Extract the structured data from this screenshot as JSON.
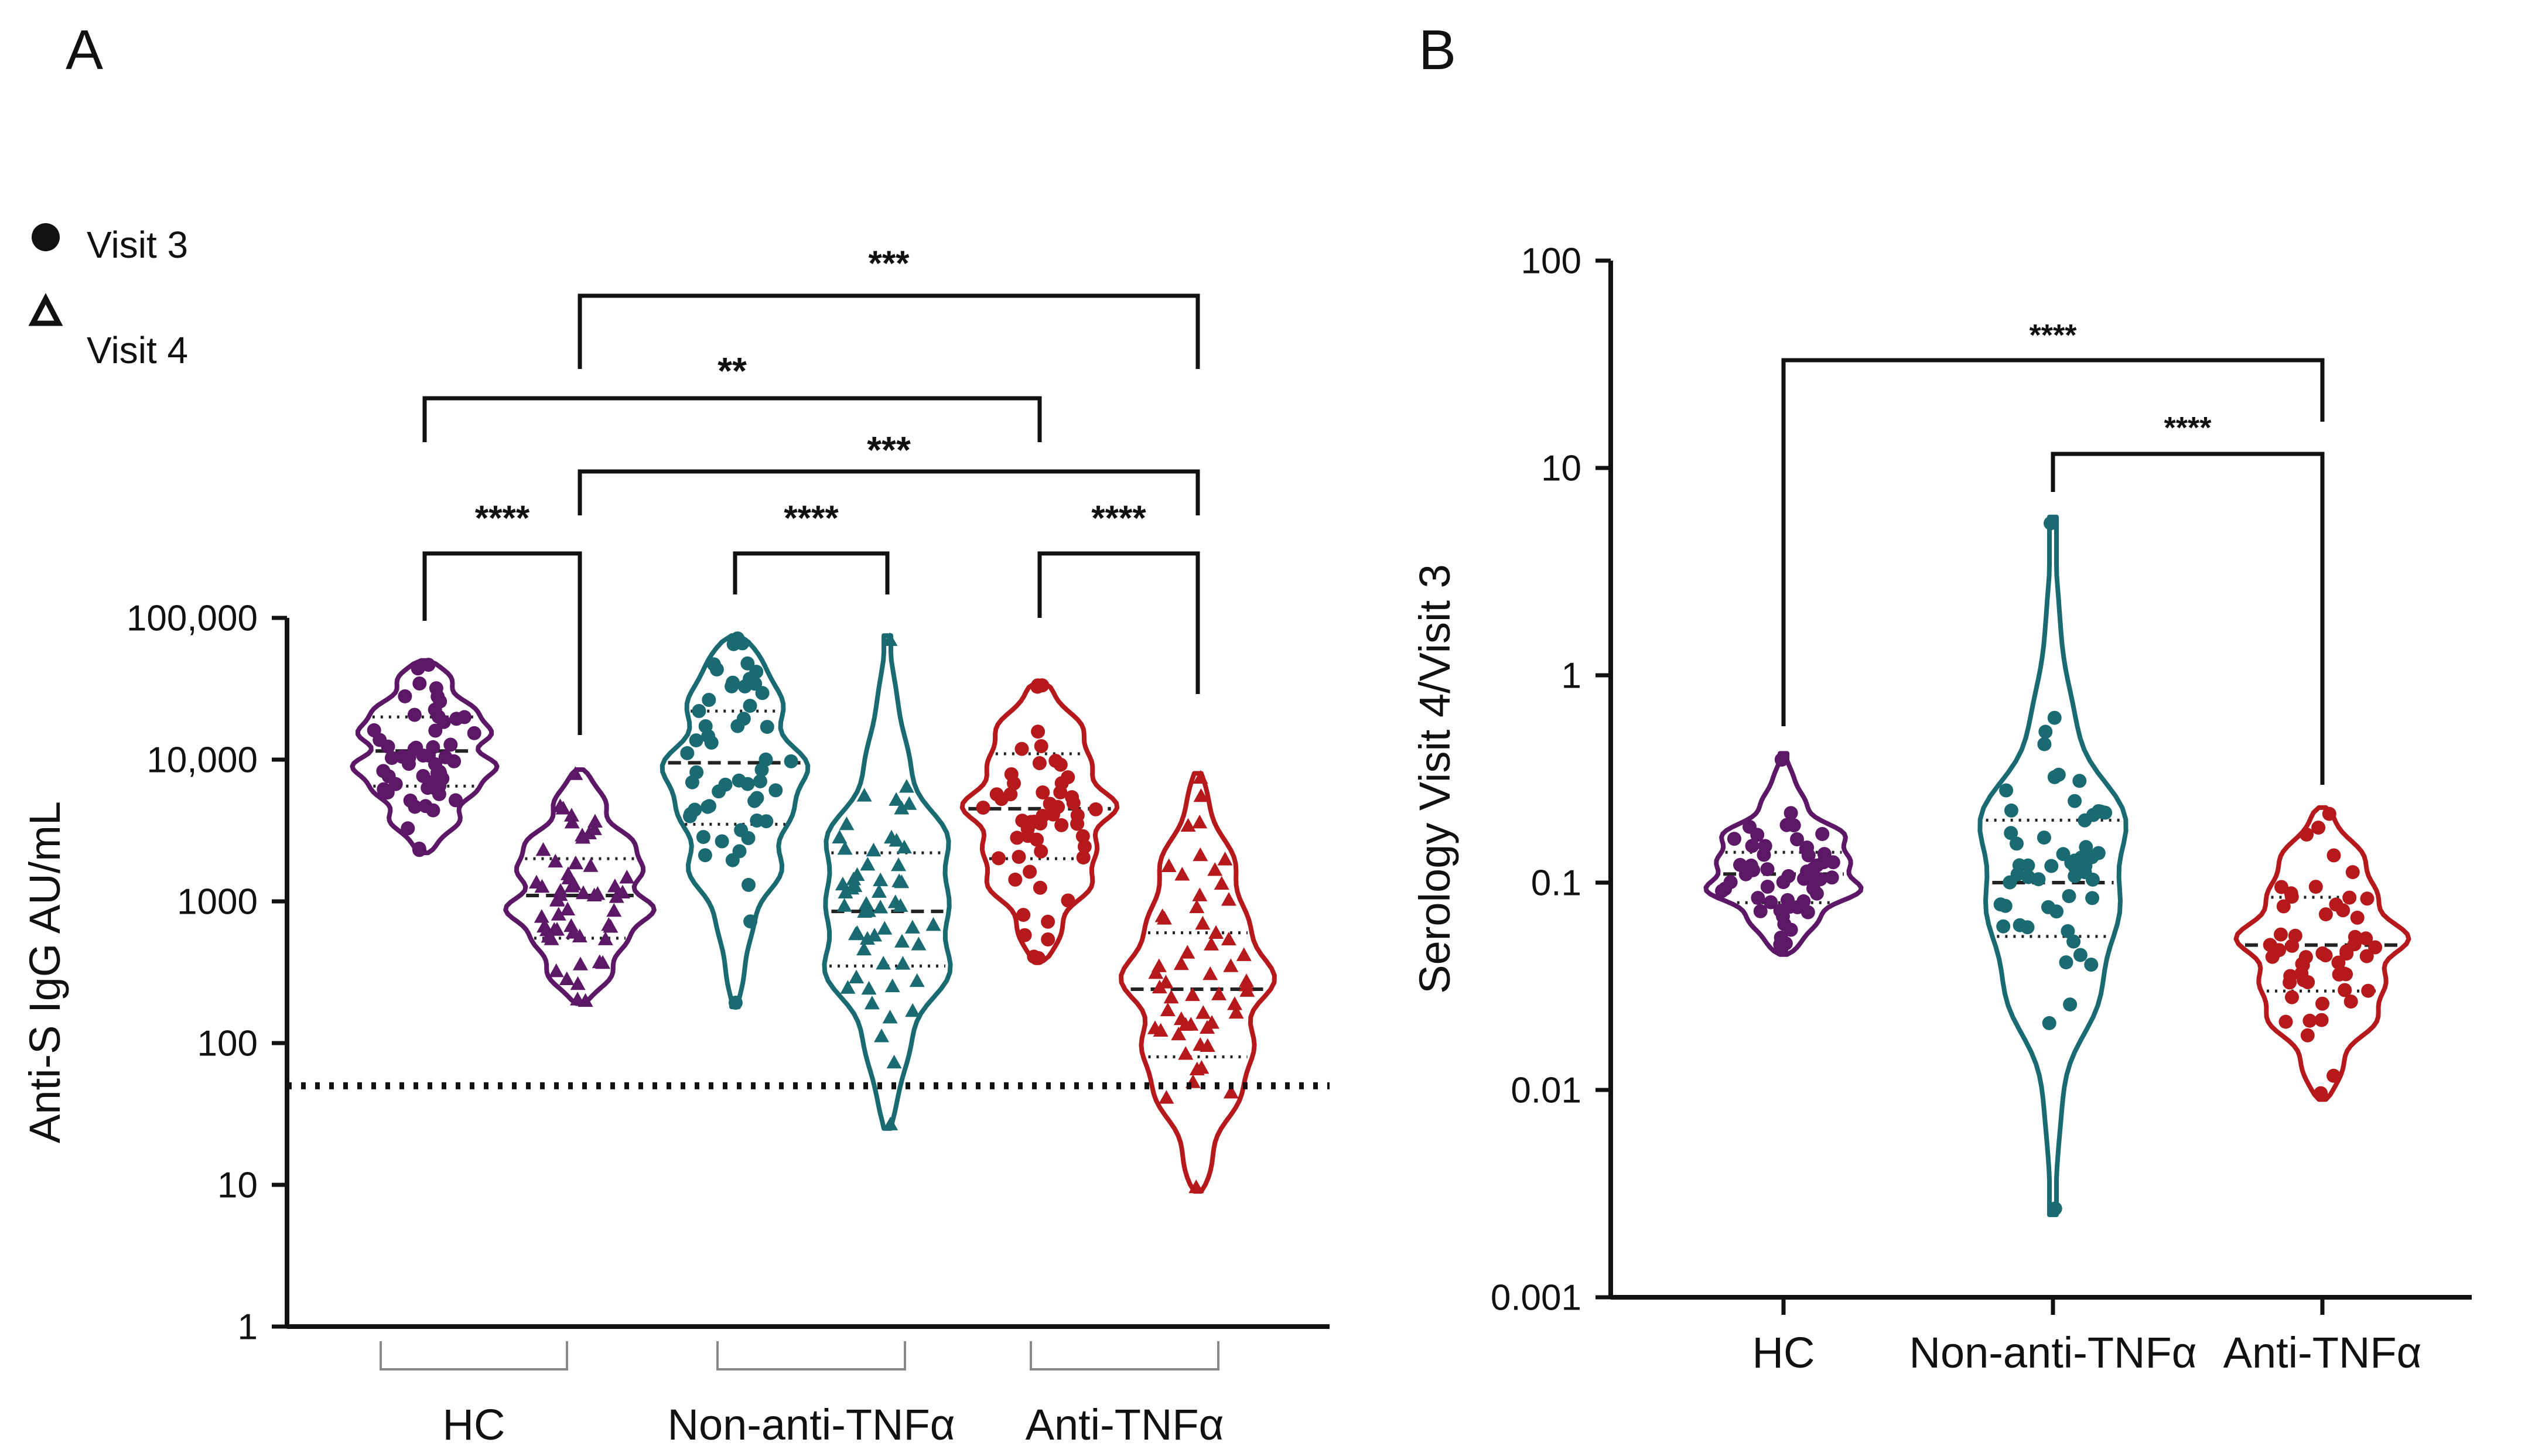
{
  "panels": {
    "a": {
      "label": "A"
    },
    "b": {
      "label": "B"
    }
  },
  "legend": {
    "visit3": {
      "label": "Visit 3",
      "marker": "circle"
    },
    "visit4": {
      "label": "Visit 4",
      "marker": "triangle"
    }
  },
  "colors": {
    "HC": "#5c1766",
    "Non-anti-TNFα": "#1a6a72",
    "Anti-TNFα": "#b5191c"
  },
  "chart_data": [
    {
      "panel": "A",
      "type": "violin",
      "ylabel": "Anti-S IgG AU/mL",
      "yscale": "log",
      "ylim": [
        1,
        100000
      ],
      "yticks": [
        {
          "value": 1,
          "label": "1"
        },
        {
          "value": 10,
          "label": "10"
        },
        {
          "value": 100,
          "label": "100"
        },
        {
          "value": 1000,
          "label": "1000"
        },
        {
          "value": 10000,
          "label": "10,000"
        },
        {
          "value": 100000,
          "label": "100,000"
        }
      ],
      "groups": [
        "HC",
        "Non-anti-TNFα",
        "Anti-TNFα"
      ],
      "reference_line": {
        "value": 50,
        "style": "dotted"
      },
      "series": [
        {
          "group": "HC",
          "visit": "Visit 3",
          "min": 2200,
          "max": 50000,
          "median": 11500,
          "q1": 6500,
          "q3": 20000
        },
        {
          "group": "HC",
          "visit": "Visit 4",
          "min": 190,
          "max": 8500,
          "median": 1100,
          "q1": 550,
          "q3": 2000
        },
        {
          "group": "Non-anti-TNFα",
          "visit": "Visit 3",
          "min": 180,
          "max": 75000,
          "median": 9500,
          "q1": 3500,
          "q3": 22000
        },
        {
          "group": "Non-anti-TNFα",
          "visit": "Visit 4",
          "min": 25,
          "max": 75000,
          "median": 850,
          "q1": 350,
          "q3": 2200
        },
        {
          "group": "Anti-TNFα",
          "visit": "Visit 3",
          "min": 380,
          "max": 35000,
          "median": 4500,
          "q1": 2000,
          "q3": 11000
        },
        {
          "group": "Anti-TNFα",
          "visit": "Visit 4",
          "min": 9,
          "max": 8000,
          "median": 240,
          "q1": 80,
          "q3": 600
        }
      ],
      "significance": [
        {
          "label": "****",
          "from": "HC Visit 3",
          "to": "HC Visit 4"
        },
        {
          "label": "****",
          "from": "Non-anti-TNFα Visit 3",
          "to": "Non-anti-TNFα Visit 4"
        },
        {
          "label": "****",
          "from": "Anti-TNFα Visit 3",
          "to": "Anti-TNFα Visit 4"
        },
        {
          "label": "***",
          "from": "HC Visit 4",
          "to": "Anti-TNFα Visit 4"
        },
        {
          "label": "**",
          "from": "HC Visit 3",
          "to": "Anti-TNFα Visit 3"
        },
        {
          "label": "***",
          "from": "HC Visit 4",
          "to": "Anti-TNFα Visit 4"
        }
      ]
    },
    {
      "panel": "B",
      "type": "violin",
      "ylabel": "Serology Visit 4/Visit 3",
      "yscale": "log",
      "ylim": [
        0.001,
        100
      ],
      "yticks": [
        {
          "value": 0.001,
          "label": "0.001"
        },
        {
          "value": 0.01,
          "label": "0.01"
        },
        {
          "value": 0.1,
          "label": "0.1"
        },
        {
          "value": 1,
          "label": "1"
        },
        {
          "value": 10,
          "label": "10"
        },
        {
          "value": 100,
          "label": "100"
        }
      ],
      "categories": [
        "HC",
        "Non-anti-TNFα",
        "Anti-TNFα"
      ],
      "series": [
        {
          "group": "HC",
          "min": 0.045,
          "max": 0.42,
          "median": 0.11,
          "q1": 0.08,
          "q3": 0.14
        },
        {
          "group": "Non-anti-TNFα",
          "min": 0.0025,
          "max": 5.8,
          "median": 0.1,
          "q1": 0.055,
          "q3": 0.2
        },
        {
          "group": "Anti-TNFα",
          "min": 0.009,
          "max": 0.23,
          "median": 0.05,
          "q1": 0.03,
          "q3": 0.085
        }
      ],
      "significance": [
        {
          "label": "****",
          "from": "HC",
          "to": "Anti-TNFα"
        },
        {
          "label": "****",
          "from": "Non-anti-TNFα",
          "to": "Anti-TNFα"
        }
      ]
    }
  ]
}
